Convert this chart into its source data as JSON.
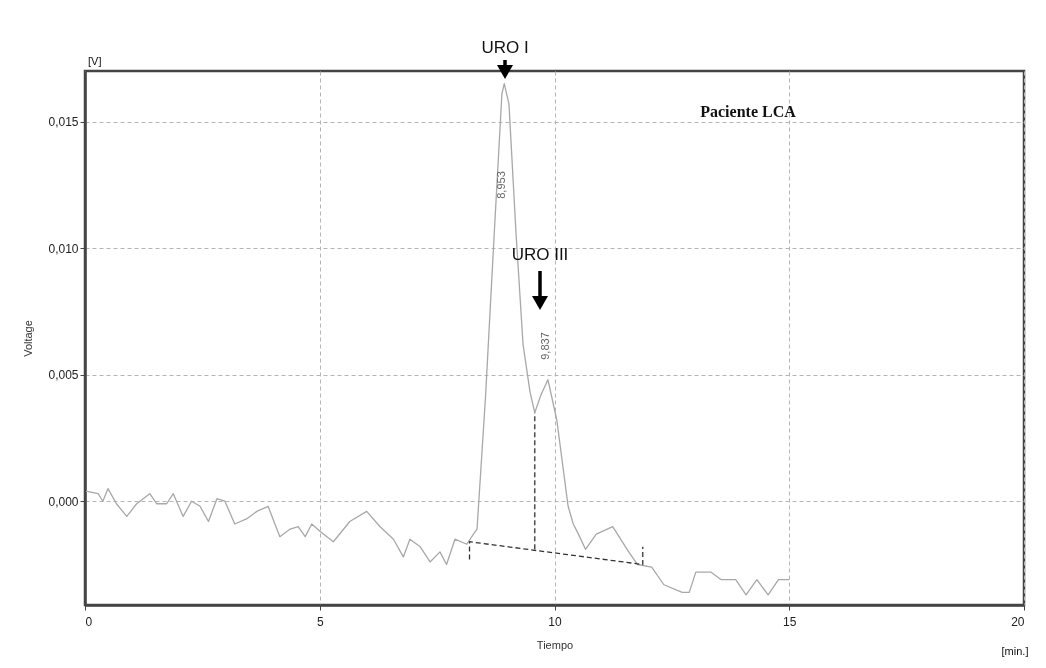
{
  "chart_data": {
    "type": "line",
    "xlabel": "Tiempo",
    "ylabel": "Voltage",
    "xlim": [
      0,
      20
    ],
    "ylim": [
      -0.0041,
      0.017
    ],
    "xticks": [
      0,
      5,
      10,
      15,
      20
    ],
    "yticks": [
      {
        "value": 0,
        "label": "0,000"
      },
      {
        "value": 0.005,
        "label": "0,005"
      },
      {
        "value": 0.01,
        "label": "0,010"
      },
      {
        "value": 0.015,
        "label": "0,015"
      }
    ],
    "grid": true,
    "legend": false,
    "marker": "none",
    "series": [
      {
        "color": "#a8a8a8",
        "line_style": "solid",
        "x": [
          0.02,
          0.28,
          0.38,
          0.49,
          0.67,
          0.89,
          1.1,
          1.38,
          1.53,
          1.74,
          1.88,
          2.09,
          2.27,
          2.45,
          2.63,
          2.81,
          2.98,
          3.19,
          3.44,
          3.66,
          3.9,
          4.15,
          4.37,
          4.54,
          4.69,
          4.83,
          5.01,
          5.29,
          5.64,
          6.0,
          6.28,
          6.57,
          6.78,
          6.92,
          7.14,
          7.35,
          7.56,
          7.7,
          7.88,
          8.13,
          8.31,
          8.35,
          8.53,
          8.72,
          8.88,
          8.93,
          9.03,
          9.18,
          9.33,
          9.48,
          9.58,
          9.71,
          9.86,
          10.05,
          10.29,
          10.4,
          10.51,
          10.66,
          10.89,
          11.24,
          11.58,
          11.77,
          12.07,
          12.33,
          12.72,
          12.87,
          13.01,
          13.33,
          13.55,
          13.86,
          14.08,
          14.31,
          14.55,
          14.77,
          15.0
        ],
        "values": [
          0.0004,
          0.0003,
          0.0,
          0.0005,
          -0.0001,
          -0.0006,
          -0.0001,
          0.0003,
          -0.0001,
          -0.0001,
          0.0003,
          -0.0006,
          0.0,
          -0.0002,
          -0.0008,
          0.0001,
          0.0,
          -0.0009,
          -0.0007,
          -0.0004,
          -0.0002,
          -0.0014,
          -0.0011,
          -0.001,
          -0.0014,
          -0.0009,
          -0.0012,
          -0.0016,
          -0.0008,
          -0.0004,
          -0.001,
          -0.0015,
          -0.0022,
          -0.0015,
          -0.0018,
          -0.0024,
          -0.002,
          -0.0025,
          -0.0015,
          -0.0017,
          -0.0012,
          -0.0011,
          0.0041,
          0.0107,
          0.0161,
          0.0165,
          0.0157,
          0.0106,
          0.0062,
          0.0043,
          0.0035,
          0.0042,
          0.0048,
          0.0032,
          -0.0002,
          -0.0009,
          -0.0013,
          -0.0019,
          -0.0013,
          -0.001,
          -0.002,
          -0.0025,
          -0.0026,
          -0.0033,
          -0.0036,
          -0.0036,
          -0.0028,
          -0.0028,
          -0.0031,
          -0.0031,
          -0.0037,
          -0.0031,
          -0.0037,
          -0.0031,
          -0.0031
        ]
      },
      {
        "color": "#333333",
        "line_style": "dashed",
        "x": [
          8.19,
          8.19,
          11.88,
          11.88
        ],
        "values": [
          -0.0023,
          -0.0016,
          -0.0025,
          -0.0018
        ]
      },
      {
        "color": "#333333",
        "line_style": "dashed",
        "x": [
          9.58,
          9.58
        ],
        "values": [
          -0.0019,
          0.0035
        ]
      }
    ],
    "annotations": [
      "Paciente LCA",
      "[V]",
      "[min.]",
      "URO I",
      "URO III",
      "8,953",
      "9,837"
    ]
  }
}
